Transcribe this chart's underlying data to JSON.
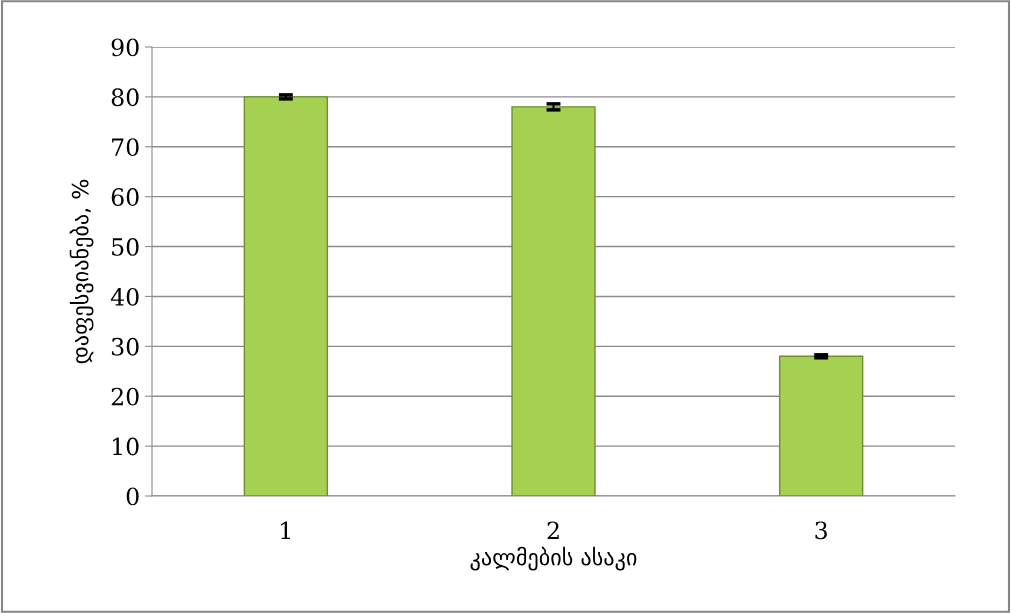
{
  "chart_data": {
    "type": "bar",
    "xlabel": "კალმების ასაკი",
    "ylabel": "დაფესვიანება, %",
    "categories": [
      "1",
      "2",
      "3"
    ],
    "values": [
      80,
      78,
      28
    ],
    "errors": [
      0.4,
      0.6,
      0.3
    ],
    "color": "#a6d052",
    "ylim": [
      0,
      90
    ],
    "yticks": [
      0,
      10,
      20,
      30,
      40,
      50,
      60,
      70,
      80,
      90
    ],
    "grid": "y",
    "legend": false
  }
}
